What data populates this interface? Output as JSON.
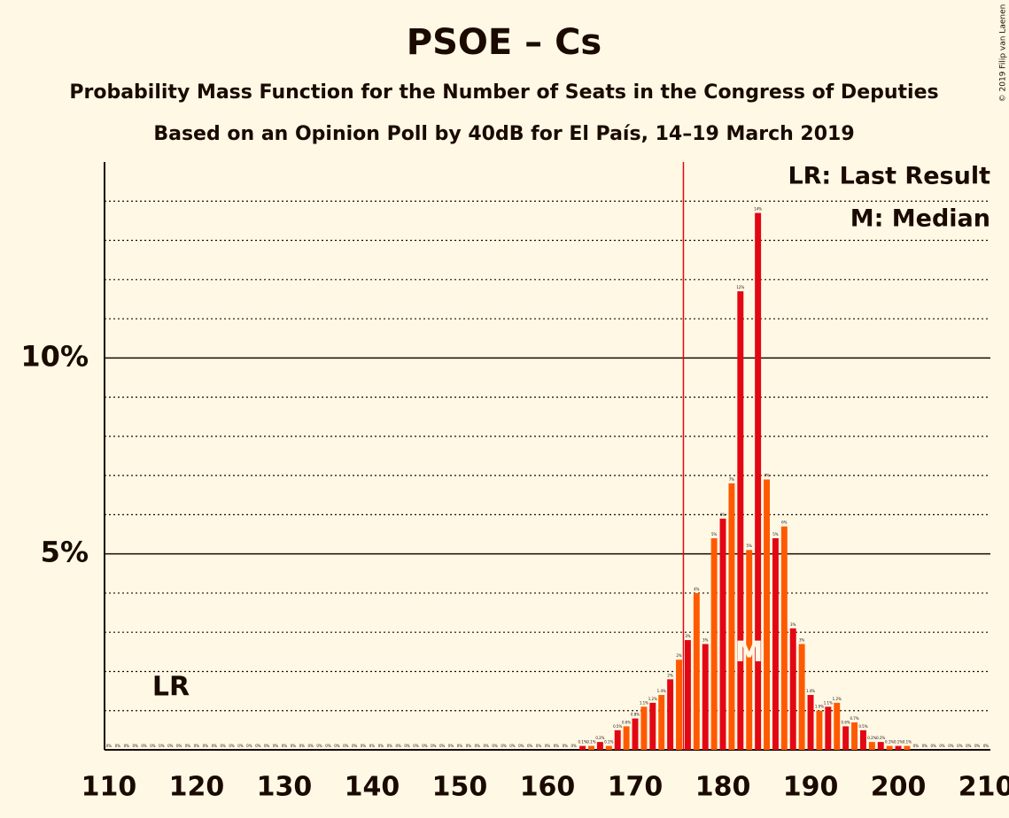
{
  "chart_data": {
    "type": "bar",
    "title": "PSOE – Cs",
    "subtitle": "Probability Mass Function for the Number of Seats in the Congress of Deputies",
    "subtitle2": "Based on an Opinion Poll by 40dB for El País, 14–19 March 2019",
    "credit": "© 2019 Filip van Laenen",
    "legend": [
      "LR: Last Result",
      "M: Median"
    ],
    "legend_corner": "top-right",
    "last_result": 176,
    "last_result_label": "LR",
    "median": 183,
    "median_label": "M",
    "colors": [
      "#e30613",
      "#ff5a00"
    ],
    "xlim": [
      109.5,
      210.5
    ],
    "xticks": [
      110,
      120,
      130,
      140,
      150,
      160,
      170,
      180,
      190,
      200,
      210
    ],
    "ylim": [
      0,
      15
    ],
    "yticks": [
      {
        "value": 5,
        "label": "5%"
      },
      {
        "value": 10,
        "label": "10%"
      }
    ],
    "minor_gridlines": [
      1,
      2,
      3,
      4,
      6,
      7,
      8,
      9,
      11,
      12,
      13,
      14
    ],
    "x": [
      110,
      111,
      112,
      113,
      114,
      115,
      116,
      117,
      118,
      119,
      120,
      121,
      122,
      123,
      124,
      125,
      126,
      127,
      128,
      129,
      130,
      131,
      132,
      133,
      134,
      135,
      136,
      137,
      138,
      139,
      140,
      141,
      142,
      143,
      144,
      145,
      146,
      147,
      148,
      149,
      150,
      151,
      152,
      153,
      154,
      155,
      156,
      157,
      158,
      159,
      160,
      161,
      162,
      163,
      164,
      165,
      166,
      167,
      168,
      169,
      170,
      171,
      172,
      173,
      174,
      175,
      176,
      177,
      178,
      179,
      180,
      181,
      182,
      183,
      184,
      185,
      186,
      187,
      188,
      189,
      190,
      191,
      192,
      193,
      194,
      195,
      196,
      197,
      198,
      199,
      200,
      201,
      202,
      203,
      204,
      205,
      206,
      207,
      208,
      209,
      210
    ],
    "values": [
      0,
      0,
      0,
      0,
      0,
      0,
      0,
      0,
      0,
      0,
      0,
      0,
      0,
      0,
      0,
      0,
      0,
      0,
      0,
      0,
      0,
      0,
      0,
      0,
      0,
      0,
      0,
      0,
      0,
      0,
      0,
      0,
      0,
      0,
      0,
      0,
      0,
      0,
      0,
      0,
      0,
      0,
      0,
      0,
      0,
      0,
      0,
      0,
      0,
      0,
      0,
      0,
      0,
      0,
      0.1,
      0.1,
      0.2,
      0.1,
      0.5,
      0.6,
      0.8,
      1.1,
      1.2,
      1.4,
      1.8,
      2.3,
      2.8,
      4.0,
      2.7,
      5.4,
      5.9,
      6.8,
      11.7,
      5.1,
      13.7,
      6.9,
      5.4,
      5.7,
      3.1,
      2.7,
      1.4,
      1.0,
      1.1,
      1.2,
      0.6,
      0.7,
      0.5,
      0.2,
      0.2,
      0.1,
      0.1,
      0.1,
      0,
      0,
      0,
      0,
      0,
      0,
      0,
      0,
      0
    ],
    "value_labels": [
      "0%",
      "0%",
      "0%",
      "0%",
      "0%",
      "0%",
      "0%",
      "0%",
      "0%",
      "0%",
      "0%",
      "0%",
      "0%",
      "0%",
      "0%",
      "0%",
      "0%",
      "0%",
      "0%",
      "0%",
      "0%",
      "0%",
      "0%",
      "0%",
      "0%",
      "0%",
      "0%",
      "0%",
      "0%",
      "0%",
      "0%",
      "0%",
      "0%",
      "0%",
      "0%",
      "0%",
      "0%",
      "0%",
      "0%",
      "0%",
      "0%",
      "0%",
      "0%",
      "0%",
      "0%",
      "0%",
      "0%",
      "0%",
      "0%",
      "0%",
      "0%",
      "0%",
      "0%",
      "0%",
      "0.1%",
      "0.1%",
      "0.2%",
      "0.1%",
      "0.5%",
      "0.6%",
      "0.8%",
      "1.1%",
      "1.2%",
      "1.4%",
      "2%",
      "2%",
      "3%",
      "4%",
      "3%",
      "5%",
      "6%",
      "7%",
      "12%",
      "5%",
      "14%",
      "7%",
      "5%",
      "6%",
      "3%",
      "3%",
      "1.4%",
      "1.0%",
      "1.1%",
      "1.2%",
      "0.6%",
      "0.7%",
      "0.5%",
      "0.2%",
      "0.2%",
      "0.1%",
      "0.1%",
      "0.1%",
      "0%",
      "0%",
      "0%",
      "0%",
      "0%",
      "0%",
      "0%",
      "0%",
      "0%"
    ]
  }
}
